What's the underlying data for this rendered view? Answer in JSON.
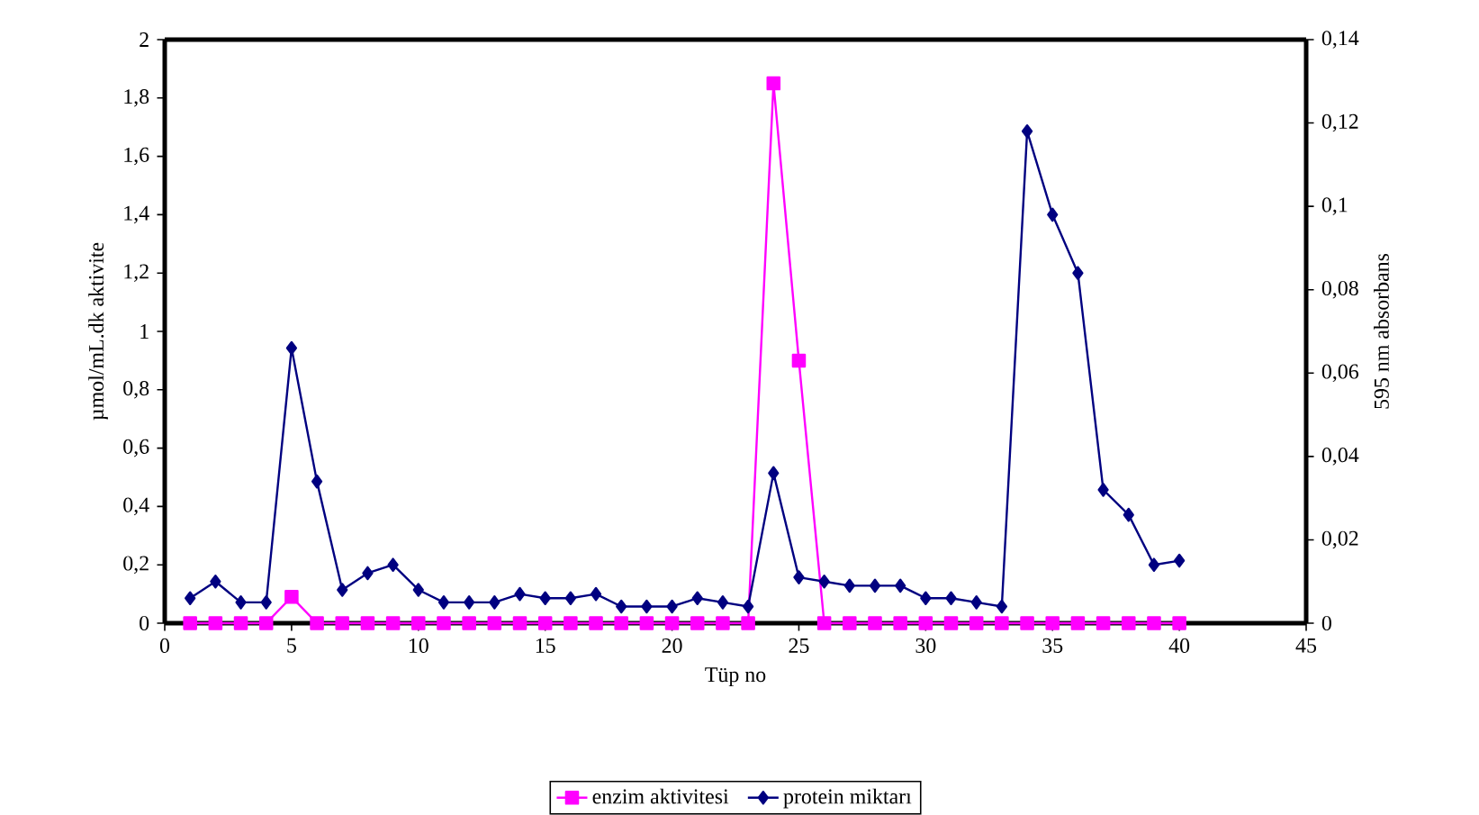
{
  "chart_data": {
    "type": "line",
    "xlabel": "Tüp no",
    "ylabel": "µmol/mL.dk aktivite",
    "y2label": "595 nm absorbans",
    "x": [
      1,
      2,
      3,
      4,
      5,
      6,
      7,
      8,
      9,
      10,
      11,
      12,
      13,
      14,
      15,
      16,
      17,
      18,
      19,
      20,
      21,
      22,
      23,
      24,
      25,
      26,
      27,
      28,
      29,
      30,
      31,
      32,
      33,
      34,
      35,
      36,
      37,
      38,
      39,
      40
    ],
    "series": [
      {
        "name": "enzim aktivitesi",
        "color": "#ff00ff",
        "marker": "square",
        "axis": "y",
        "values": [
          0,
          0,
          0,
          0,
          0.09,
          0,
          0,
          0,
          0,
          0,
          0,
          0,
          0,
          0,
          0,
          0,
          0,
          0,
          0,
          0,
          0,
          0,
          0,
          1.85,
          0.9,
          0,
          0,
          0,
          0,
          0,
          0,
          0,
          0,
          0,
          0,
          0,
          0,
          0,
          0,
          0
        ]
      },
      {
        "name": "protein miktarı",
        "color": "#000080",
        "marker": "diamond",
        "axis": "y2",
        "values": [
          0.006,
          0.01,
          0.005,
          0.005,
          0.066,
          0.034,
          0.008,
          0.012,
          0.014,
          0.008,
          0.005,
          0.005,
          0.005,
          0.007,
          0.006,
          0.006,
          0.007,
          0.004,
          0.004,
          0.004,
          0.006,
          0.005,
          0.004,
          0.036,
          0.011,
          0.01,
          0.009,
          0.009,
          0.009,
          0.006,
          0.006,
          0.005,
          0.004,
          0.118,
          0.098,
          0.084,
          0.032,
          0.026,
          0.014,
          0.015
        ]
      }
    ],
    "xlim": [
      0,
      45
    ],
    "xticks": [
      0,
      5,
      10,
      15,
      20,
      25,
      30,
      35,
      40,
      45
    ],
    "ylim": [
      0,
      2
    ],
    "yticks": [
      0,
      {
        "value": 0.2,
        "label": "0,2"
      },
      {
        "value": 0.4,
        "label": "0,4"
      },
      {
        "value": 0.6,
        "label": "0,6"
      },
      {
        "value": 0.8,
        "label": "0,8"
      },
      1,
      {
        "value": 1.2,
        "label": "1,2"
      },
      {
        "value": 1.4,
        "label": "1,4"
      },
      {
        "value": 1.6,
        "label": "1,6"
      },
      {
        "value": 1.8,
        "label": "1,8"
      },
      2
    ],
    "y2lim": [
      0,
      0.14
    ],
    "y2ticks": [
      0,
      {
        "value": 0.02,
        "label": "0,02"
      },
      {
        "value": 0.04,
        "label": "0,04"
      },
      {
        "value": 0.06,
        "label": "0,06"
      },
      {
        "value": 0.08,
        "label": "0,08"
      },
      {
        "value": 0.1,
        "label": "0,1"
      },
      {
        "value": 0.12,
        "label": "0,12"
      },
      {
        "value": 0.14,
        "label": "0,14"
      }
    ],
    "legend": "bottom"
  }
}
